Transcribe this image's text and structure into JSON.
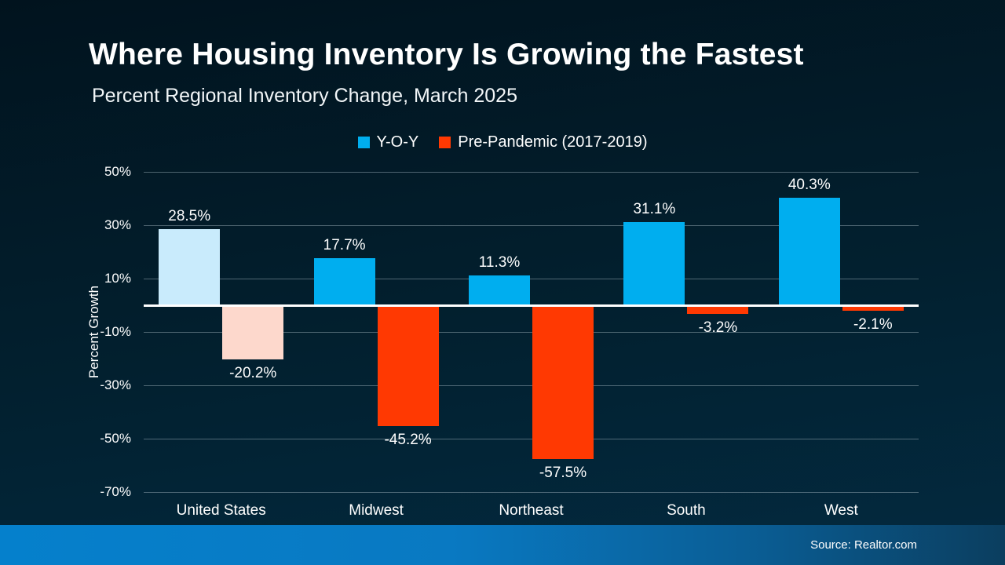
{
  "slide": {
    "title": "Where Housing Inventory Is Growing the Fastest",
    "subtitle": "Percent Regional Inventory Change, March 2025",
    "source": "Source: Realtor.com"
  },
  "colors": {
    "background_top": "#01131e",
    "background_bottom": "#032a40",
    "yoy_blue": "#00AEEF",
    "yoy_blue_muted": "#C9EBFC",
    "prepandemic_red": "#FF3902",
    "prepandemic_red_muted": "#FDD8CC",
    "zero_line": "#FFFFFF",
    "footer_left": "#0580CC",
    "footer_right": "#0B3E5F"
  },
  "chart_data": {
    "type": "bar",
    "title": "Where Housing Inventory Is Growing the Fastest",
    "subtitle": "Percent Regional Inventory Change, March 2025",
    "categories": [
      "United States",
      "Midwest",
      "Northeast",
      "South",
      "West"
    ],
    "series": [
      {
        "name": "Y-O-Y",
        "color": "#00AEEF",
        "muted_color": "#C9EBFC",
        "values": [
          28.5,
          17.7,
          11.3,
          31.1,
          40.3
        ],
        "value_labels": [
          "28.5%",
          "17.7%",
          "11.3%",
          "31.1%",
          "40.3%"
        ]
      },
      {
        "name": "Pre-Pandemic (2017-2019)",
        "color": "#FF3902",
        "muted_color": "#FDD8CC",
        "values": [
          -20.2,
          -45.2,
          -57.5,
          -3.2,
          -2.1
        ],
        "value_labels": [
          "-20.2%",
          "-45.2%",
          "-57.5%",
          "-3.2%",
          "-2.1%"
        ]
      }
    ],
    "muted_category_index": 0,
    "ylabel": "Percent Growth",
    "ylim": [
      -70,
      50
    ],
    "yticks": [
      50,
      30,
      10,
      -10,
      -30,
      -50,
      -70
    ],
    "ytick_labels": [
      "50%",
      "30%",
      "10%",
      "-10%",
      "-30%",
      "-50%",
      "-70%"
    ],
    "grid": true,
    "legend_position": "top"
  }
}
